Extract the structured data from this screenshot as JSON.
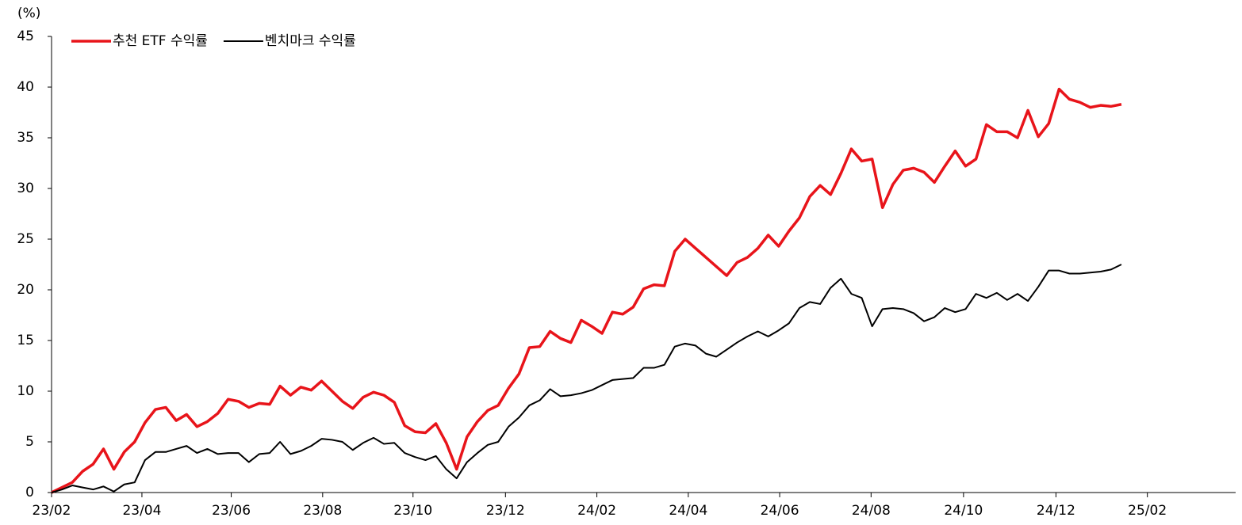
{
  "chart_data": {
    "type": "line",
    "y_label": "(%)",
    "x": [
      0,
      1,
      2,
      3,
      4,
      5,
      6,
      7,
      8,
      9,
      10,
      11,
      12,
      13,
      14,
      15,
      16,
      17,
      18,
      19,
      20,
      21,
      22,
      23,
      24,
      25,
      26,
      27,
      28,
      29,
      30,
      31,
      32,
      33,
      34,
      35,
      36,
      37,
      38,
      39,
      40,
      41,
      42,
      43,
      44,
      45,
      46,
      47,
      48,
      49,
      50,
      51,
      52,
      53,
      54,
      55,
      56,
      57,
      58,
      59,
      60,
      61,
      62,
      63,
      64,
      65,
      66,
      67,
      68,
      69,
      70,
      71,
      72,
      73,
      74,
      75,
      76,
      77,
      78,
      79,
      80,
      81,
      82,
      83,
      84,
      85,
      86,
      87,
      88,
      89,
      90,
      91,
      92,
      93,
      94,
      95,
      96,
      97,
      98,
      99,
      100,
      101,
      102,
      103
    ],
    "series": [
      {
        "name": "추천 ETF 수익률",
        "color": "#e8141a",
        "width": 3.5,
        "values": [
          0,
          0.5,
          1.0,
          2.1,
          2.8,
          4.3,
          2.3,
          4.0,
          5.0,
          6.9,
          8.2,
          8.4,
          7.1,
          7.7,
          6.5,
          7.0,
          7.8,
          9.2,
          9.0,
          8.4,
          8.8,
          8.7,
          10.5,
          9.6,
          10.4,
          10.1,
          11.0,
          10.0,
          9.0,
          8.3,
          9.4,
          9.9,
          9.6,
          8.9,
          6.6,
          6.0,
          5.9,
          6.8,
          4.9,
          2.3,
          5.5,
          7.0,
          8.1,
          8.6,
          10.3,
          11.7,
          14.3,
          14.4,
          15.9,
          15.2,
          14.8,
          17.0,
          16.4,
          15.7,
          17.8,
          17.6,
          18.3,
          20.1,
          20.5,
          20.4,
          23.8,
          25.0,
          24.1,
          23.2,
          22.3,
          21.4,
          22.7,
          23.2,
          24.1,
          25.4,
          24.3,
          25.8,
          27.1,
          29.2,
          30.3,
          29.4,
          31.5,
          33.9,
          32.7,
          32.9,
          28.1,
          30.4,
          31.8,
          32.0,
          31.6,
          30.6,
          32.2,
          33.7,
          32.2,
          32.9,
          36.3,
          35.6,
          35.6,
          35.0,
          37.7,
          35.1,
          36.4,
          39.8,
          38.8,
          38.5,
          38.0,
          38.2,
          38.1,
          38.3
        ]
      },
      {
        "name": "벤치마크 수익률",
        "color": "#000000",
        "width": 2,
        "values": [
          0,
          0.3,
          0.7,
          0.5,
          0.3,
          0.6,
          0.1,
          0.8,
          1.0,
          3.2,
          4.0,
          4.0,
          4.3,
          4.6,
          3.9,
          4.3,
          3.8,
          3.9,
          3.9,
          3.0,
          3.8,
          3.9,
          5.0,
          3.8,
          4.1,
          4.6,
          5.3,
          5.2,
          5.0,
          4.2,
          4.9,
          5.4,
          4.8,
          4.9,
          3.9,
          3.5,
          3.2,
          3.6,
          2.3,
          1.4,
          3.0,
          3.9,
          4.7,
          5.0,
          6.5,
          7.4,
          8.6,
          9.1,
          10.2,
          9.5,
          9.6,
          9.8,
          10.1,
          10.6,
          11.1,
          11.2,
          11.3,
          12.3,
          12.3,
          12.6,
          14.4,
          14.7,
          14.5,
          13.7,
          13.4,
          14.1,
          14.8,
          15.4,
          15.9,
          15.4,
          16.0,
          16.7,
          18.2,
          18.8,
          18.6,
          20.2,
          21.1,
          19.6,
          19.2,
          16.4,
          18.1,
          18.2,
          18.1,
          17.7,
          16.9,
          17.3,
          18.2,
          17.8,
          18.1,
          19.6,
          19.2,
          19.7,
          19.0,
          19.6,
          18.9,
          20.3,
          21.9,
          21.9,
          21.6,
          21.6,
          21.7,
          21.8,
          22.0,
          22.5
        ]
      }
    ],
    "xlim": [
      0,
      114
    ],
    "xticks": [
      {
        "value": 0,
        "label": "23/02"
      },
      {
        "value": 8.7,
        "label": "23/04"
      },
      {
        "value": 17.3,
        "label": "23/06"
      },
      {
        "value": 26.1,
        "label": "23/08"
      },
      {
        "value": 34.8,
        "label": "23/10"
      },
      {
        "value": 43.7,
        "label": "23/12"
      },
      {
        "value": 52.5,
        "label": "24/02"
      },
      {
        "value": 61.3,
        "label": "24/04"
      },
      {
        "value": 70.1,
        "label": "24/06"
      },
      {
        "value": 78.9,
        "label": "24/08"
      },
      {
        "value": 87.8,
        "label": "24/10"
      },
      {
        "value": 96.7,
        "label": "24/12"
      },
      {
        "value": 105.5,
        "label": "25/02"
      }
    ],
    "ylim": [
      0,
      45
    ],
    "yticks": [
      0,
      5,
      10,
      15,
      20,
      25,
      30,
      35,
      40,
      45
    ],
    "grid": false,
    "legend": "top-left"
  }
}
